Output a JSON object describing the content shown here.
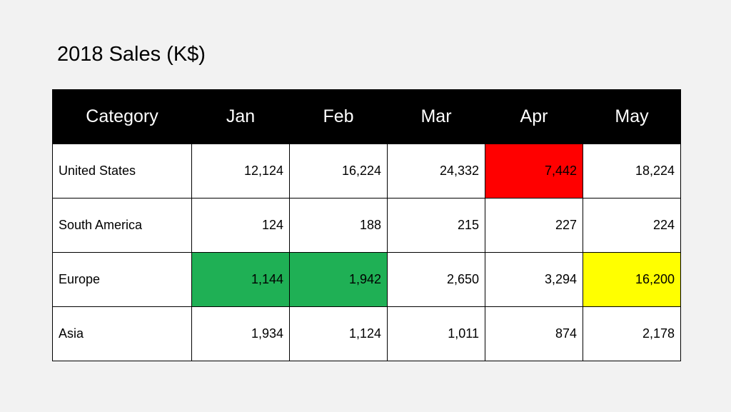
{
  "title": "2018 Sales (K$)",
  "colors": {
    "background": "#f2f2f2",
    "header_bg": "#000000",
    "header_text": "#ffffff",
    "cell_bg": "#ffffff",
    "red": "#ff0000",
    "green": "#1fb055",
    "yellow": "#ffff00"
  },
  "chart_data": {
    "type": "table",
    "title": "2018 Sales (K$)",
    "columns": [
      "Category",
      "Jan",
      "Feb",
      "Mar",
      "Apr",
      "May"
    ],
    "rows": [
      {
        "label": "United States",
        "values": [
          "12,124",
          "16,224",
          "24,332",
          "7,442",
          "18,224"
        ],
        "highlights": [
          null,
          null,
          null,
          "red",
          null
        ]
      },
      {
        "label": "South America",
        "values": [
          "124",
          "188",
          "215",
          "227",
          "224"
        ],
        "highlights": [
          null,
          null,
          null,
          null,
          null
        ]
      },
      {
        "label": "Europe",
        "values": [
          "1,144",
          "1,942",
          "2,650",
          "3,294",
          "16,200"
        ],
        "highlights": [
          "green",
          "green",
          null,
          null,
          "yellow"
        ]
      },
      {
        "label": "Asia",
        "values": [
          "1,934",
          "1,124",
          "1,011",
          "874",
          "2,178"
        ],
        "highlights": [
          null,
          null,
          null,
          null,
          null
        ]
      }
    ]
  }
}
